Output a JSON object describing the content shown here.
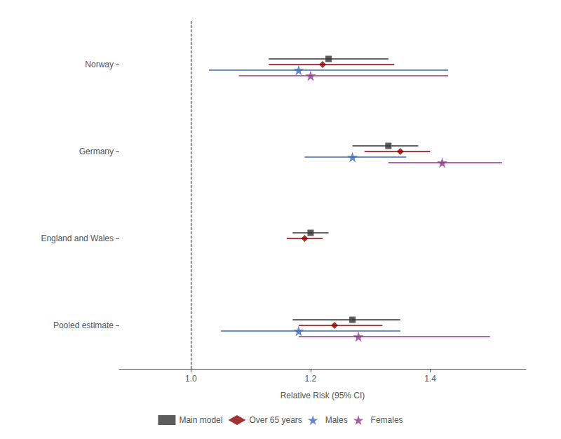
{
  "chart_data": {
    "type": "forest",
    "xlabel": "Relative Risk (95% CI)",
    "categories": [
      "Norway",
      "Germany",
      "England and Wales",
      "Pooled estimate"
    ],
    "series": [
      {
        "name": "Main model",
        "color": "#333333",
        "marker": "square",
        "values": [
          1.23,
          1.33,
          1.2,
          1.27
        ],
        "lo": [
          1.13,
          1.27,
          1.17,
          1.17
        ],
        "hi": [
          1.33,
          1.38,
          1.23,
          1.35
        ]
      },
      {
        "name": "Over 65 years",
        "color": "#8B0000",
        "marker": "diamond",
        "values": [
          1.22,
          1.35,
          1.19,
          1.24
        ],
        "lo": [
          1.13,
          1.29,
          1.16,
          1.18
        ],
        "hi": [
          1.34,
          1.4,
          1.22,
          1.32
        ]
      },
      {
        "name": "Males",
        "color": "#4169B8",
        "marker": "star",
        "values": [
          1.18,
          1.27,
          null,
          1.18
        ],
        "lo": [
          1.03,
          1.19,
          null,
          1.05
        ],
        "hi": [
          1.43,
          1.36,
          null,
          1.35
        ]
      },
      {
        "name": "Females",
        "color": "#8B3A8B",
        "marker": "star",
        "values": [
          1.2,
          1.42,
          null,
          1.28
        ],
        "lo": [
          1.08,
          1.33,
          null,
          1.18
        ],
        "hi": [
          1.43,
          1.52,
          null,
          1.5
        ]
      }
    ],
    "xlim": [
      0.88,
      1.56
    ],
    "xticks": [
      {
        "value": 1.0,
        "label": "1.0"
      },
      1.2,
      1.4
    ],
    "ref_line_x": 1.0,
    "grid": false,
    "legend": "bottom"
  }
}
